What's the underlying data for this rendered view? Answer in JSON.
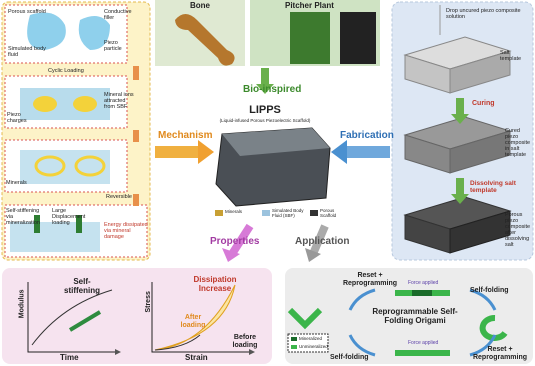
{
  "mechanism": {
    "labels": [
      "Porous scaffold",
      "Conductive filler",
      "Simulated body fluid",
      "Piezo particle",
      "Cyclic Loading",
      "Piezo charges",
      "Mineral ions attracted from SBF",
      "Minerals",
      "Reversible",
      "Self-stiffening via mineralization",
      "Large Displacement loading",
      "Energy dissipated via mineral damage"
    ]
  },
  "inspiration": {
    "bone": "Bone",
    "pitcher_plant": "Pitcher Plant",
    "arrow": "Bio-inspired"
  },
  "center": {
    "title": "LIPPS",
    "subtitle": "(Liquid-infused Porous Piezoelectric Scaffold)",
    "left_arrow": "Mechanism",
    "right_arrow": "Fabrication",
    "legend": [
      "Minerals",
      "Simulated Body Fluid (SBF)",
      "Porous Scaffold"
    ],
    "down_left": "Properties",
    "down_right": "Application"
  },
  "fabrication": {
    "steps": [
      "Drop uncured piezo composite solution",
      "Salt template",
      "Curing",
      "Cured piezo composite in salt template",
      "Dissolving salt template",
      "Porous piezo composite after dissolving salt"
    ]
  },
  "properties": {
    "modulus_axis": "Modulus",
    "time_axis": "Time",
    "self_stiffening": "Self-stiffening",
    "stress_axis": "Stress",
    "strain_axis": "Strain",
    "dissipation": "Dissipation Increase",
    "after": "After loading",
    "before": "Before loading"
  },
  "application": {
    "reset_top": "Reset + Reprogramming",
    "force_top": "Force applied",
    "fold_right": "Self-folding",
    "title": "Reprogrammable Self-Folding Origami",
    "legend": [
      "Mineralized",
      "Unmineralized"
    ],
    "fold_bottom": "Self-folding",
    "force_bottom": "Force applied",
    "reset_bottom": "Reset + Reprogramming"
  }
}
